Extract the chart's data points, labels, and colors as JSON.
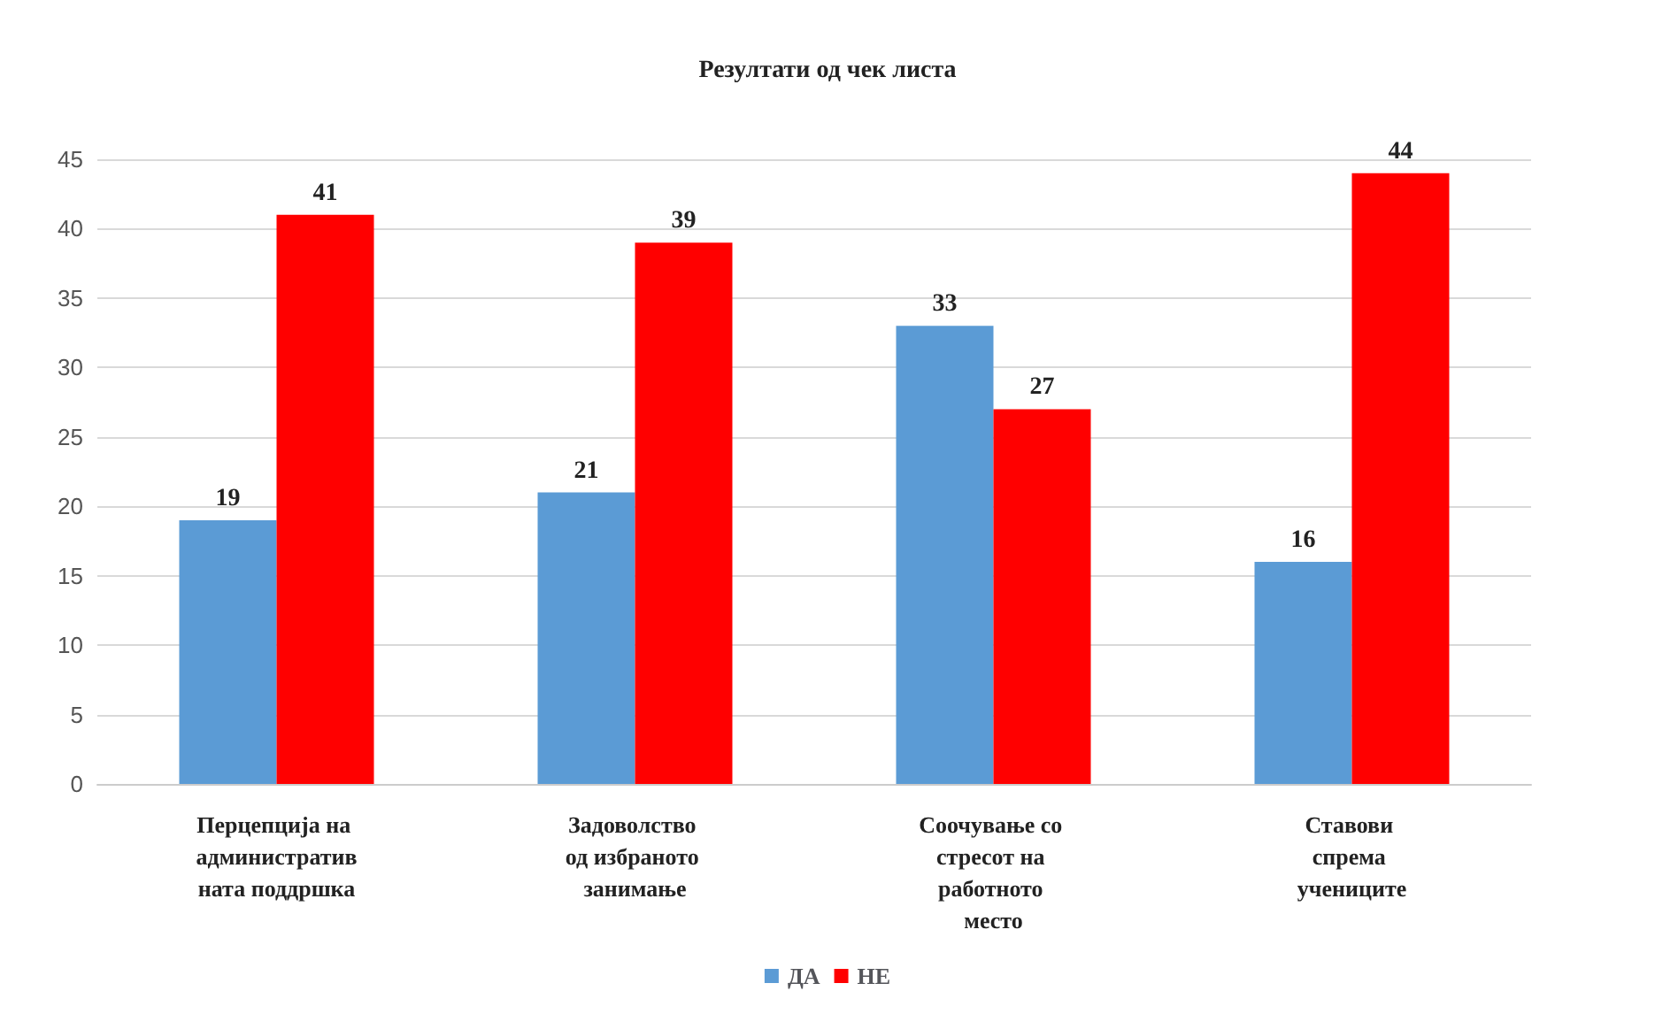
{
  "chart_data": {
    "type": "bar",
    "title": "Резултати од чек листа",
    "categories": [
      "Перцепција на административната поддршка",
      "Задоволство од избраното занимање",
      "Соочување со стресот на работното место",
      "Ставови спрема учениците"
    ],
    "series": [
      {
        "name": "ДА",
        "color": "#5b9bd5",
        "values": [
          19,
          21,
          33,
          16
        ]
      },
      {
        "name": "НЕ",
        "color": "#ff0000",
        "values": [
          41,
          39,
          27,
          44
        ]
      }
    ],
    "ylim": [
      0,
      45
    ],
    "yticks": [
      0,
      5,
      10,
      15,
      20,
      25,
      30,
      35,
      40,
      45
    ],
    "grid": "y",
    "legend": "bottom",
    "data_labels": true
  }
}
